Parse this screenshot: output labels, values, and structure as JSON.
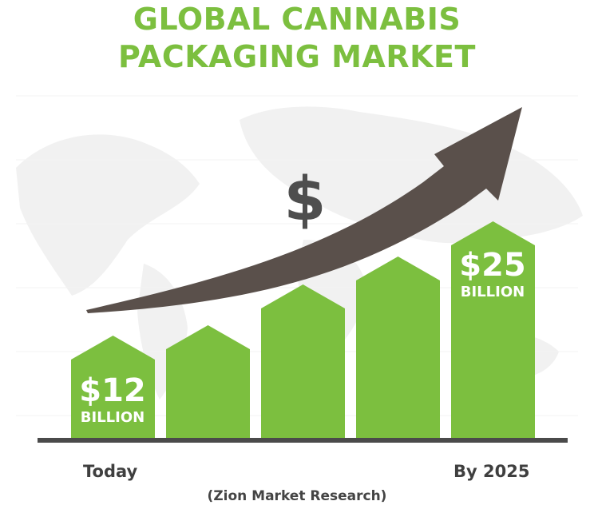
{
  "title_line1": "GLOBAL CANNABIS",
  "title_line2": "PACKAGING MARKET",
  "currency_symbol": "$",
  "colors": {
    "bar": "#7cbf3f",
    "title": "#7cbf3f",
    "arrow": "#5a504b",
    "baseline": "#4a4a4a",
    "bar_text": "#ffffff"
  },
  "chart_data": {
    "type": "bar",
    "categories": [
      "Today",
      "",
      "",
      "",
      "By 2025"
    ],
    "values": [
      12,
      null,
      null,
      null,
      25
    ],
    "unit": "BILLION",
    "data_labels": [
      {
        "index": 0,
        "value_text": "$12",
        "unit_text": "BILLION"
      },
      {
        "index": 4,
        "value_text": "$25",
        "unit_text": "BILLION"
      }
    ],
    "trend_arrow": "upward"
  },
  "x_labels": {
    "start": "Today",
    "end": "By 2025"
  },
  "source": "(Zion Market Research)"
}
